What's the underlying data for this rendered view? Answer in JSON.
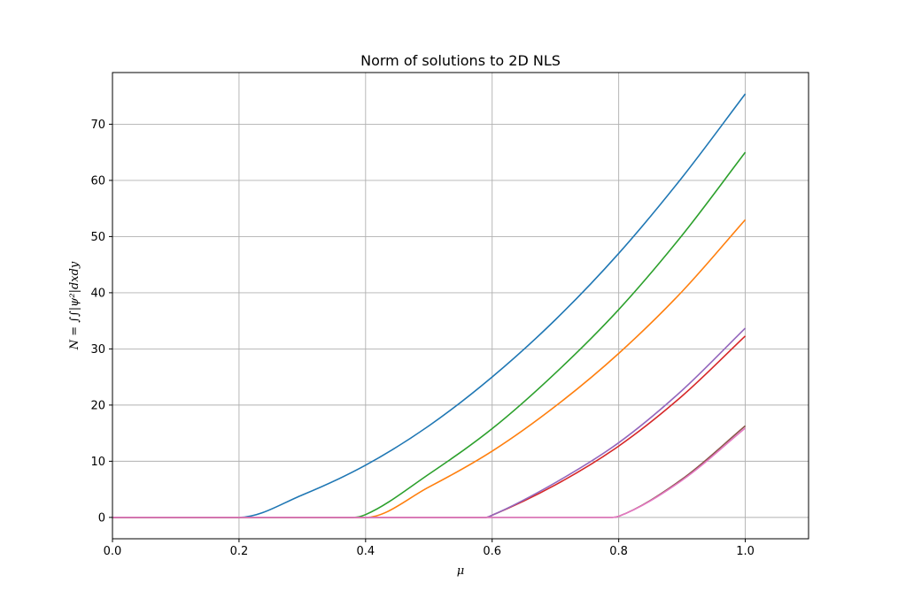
{
  "chart_data": {
    "type": "line",
    "title": "Norm of solutions to 2D NLS",
    "xlabel": "μ",
    "ylabel": "N = ∫∫|ψ²|dxdy",
    "xlim": [
      0.0,
      1.1
    ],
    "ylim": [
      -3.8,
      79.2
    ],
    "xticks": [
      0.0,
      0.2,
      0.4,
      0.6,
      0.8,
      1.0
    ],
    "xtick_labels": [
      "0.0",
      "0.2",
      "0.4",
      "0.6",
      "0.8",
      "1.0"
    ],
    "yticks": [
      0,
      10,
      20,
      30,
      40,
      50,
      60,
      70
    ],
    "ytick_labels": [
      "0",
      "10",
      "20",
      "30",
      "40",
      "50",
      "60",
      "70"
    ],
    "grid": true,
    "legend": false,
    "series": [
      {
        "color": "#1f77b4",
        "x": [
          0.0,
          0.1,
          0.2,
          0.3,
          0.4,
          0.5,
          0.6,
          0.7,
          0.8,
          0.9,
          1.0
        ],
        "y": [
          0,
          0,
          0,
          4.0,
          9.3,
          16.3,
          25.0,
          35.2,
          47.0,
          60.5,
          75.4
        ]
      },
      {
        "color": "#ff7f0e",
        "x": [
          0.0,
          0.2,
          0.4,
          0.5,
          0.6,
          0.7,
          0.8,
          0.9,
          1.0
        ],
        "y": [
          0,
          0,
          0,
          5.4,
          11.8,
          19.8,
          29.2,
          40.2,
          53.0
        ]
      },
      {
        "color": "#2ca02c",
        "x": [
          0.0,
          0.2,
          0.38,
          0.4,
          0.5,
          0.6,
          0.7,
          0.8,
          0.9,
          1.0
        ],
        "y": [
          0,
          0,
          0,
          0.5,
          7.7,
          15.8,
          25.7,
          37.0,
          50.2,
          65.0
        ]
      },
      {
        "color": "#d62728",
        "x": [
          0.0,
          0.2,
          0.4,
          0.59,
          0.6,
          0.7,
          0.8,
          0.9,
          1.0
        ],
        "y": [
          0,
          0,
          0,
          0,
          0.4,
          5.8,
          12.7,
          21.6,
          32.3
        ]
      },
      {
        "color": "#9467bd",
        "x": [
          0.0,
          0.2,
          0.4,
          0.59,
          0.6,
          0.7,
          0.8,
          0.9,
          1.0
        ],
        "y": [
          0,
          0,
          0,
          0,
          0.4,
          6.2,
          13.3,
          22.6,
          33.7
        ]
      },
      {
        "color": "#8c564b",
        "x": [
          0.0,
          0.2,
          0.4,
          0.6,
          0.79,
          0.8,
          0.9,
          1.0
        ],
        "y": [
          0,
          0,
          0,
          0,
          0,
          0.2,
          6.8,
          16.3
        ]
      },
      {
        "color": "#e377c2",
        "x": [
          0.0,
          0.2,
          0.4,
          0.6,
          0.79,
          0.8,
          0.9,
          1.0
        ],
        "y": [
          0,
          0,
          0,
          0,
          0,
          0.2,
          6.6,
          15.9
        ]
      }
    ]
  }
}
